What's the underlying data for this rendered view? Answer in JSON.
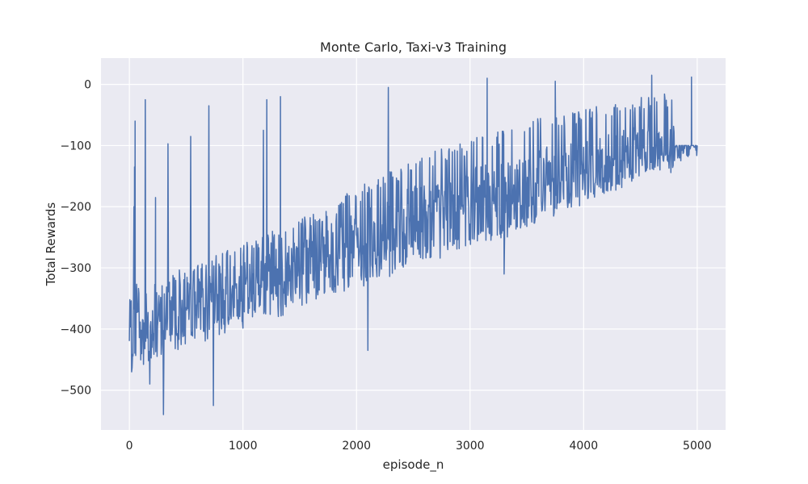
{
  "chart_data": {
    "type": "line",
    "title": "Monte Carlo, Taxi-v3 Training",
    "xlabel": "episode_n",
    "ylabel": "Total Rewards",
    "xlim": [
      -250,
      5250
    ],
    "ylim": [
      -565,
      43
    ],
    "xticks": [
      0,
      1000,
      2000,
      3000,
      4000,
      5000
    ],
    "xtick_labels": [
      "0",
      "1000",
      "2000",
      "3000",
      "4000",
      "5000"
    ],
    "yticks": [
      0,
      -100,
      -200,
      -300,
      -400,
      -500
    ],
    "ytick_labels": [
      "0",
      "−100",
      "−200",
      "−300",
      "−400",
      "−500"
    ],
    "grid": true,
    "style": "seaborn-darkgrid",
    "series": [
      {
        "color": "#4c72b0",
        "n_episodes": 5000,
        "trend": {
          "x": [
            0,
            500,
            1000,
            1500,
            2000,
            2500,
            3000,
            3500,
            4000,
            4500,
            4800,
            5000
          ],
          "y_lower": [
            -470,
            -430,
            -400,
            -370,
            -340,
            -300,
            -270,
            -240,
            -200,
            -150,
            -125,
            -115
          ],
          "y_center": [
            -400,
            -370,
            -340,
            -300,
            -270,
            -230,
            -200,
            -170,
            -140,
            -115,
            -105,
            -100
          ],
          "y_upper": [
            -330,
            -300,
            -260,
            -220,
            -170,
            -120,
            -90,
            -60,
            -40,
            -20,
            -10,
            -100
          ]
        },
        "notable_points": [
          {
            "x": 20,
            "y": -470
          },
          {
            "x": 40,
            "y": -200
          },
          {
            "x": 45,
            "y": -135
          },
          {
            "x": 50,
            "y": -60
          },
          {
            "x": 140,
            "y": -25
          },
          {
            "x": 180,
            "y": -490
          },
          {
            "x": 230,
            "y": -185
          },
          {
            "x": 300,
            "y": -540
          },
          {
            "x": 340,
            "y": -97
          },
          {
            "x": 540,
            "y": -85
          },
          {
            "x": 700,
            "y": -35
          },
          {
            "x": 740,
            "y": -525
          },
          {
            "x": 1180,
            "y": -75
          },
          {
            "x": 1210,
            "y": -25
          },
          {
            "x": 1330,
            "y": -20
          },
          {
            "x": 2100,
            "y": -435
          },
          {
            "x": 2280,
            "y": -5
          },
          {
            "x": 3150,
            "y": 10
          },
          {
            "x": 3300,
            "y": -310
          },
          {
            "x": 3750,
            "y": 5
          },
          {
            "x": 4600,
            "y": 15
          },
          {
            "x": 4950,
            "y": 12
          },
          {
            "x": 5000,
            "y": -100
          }
        ]
      }
    ]
  }
}
